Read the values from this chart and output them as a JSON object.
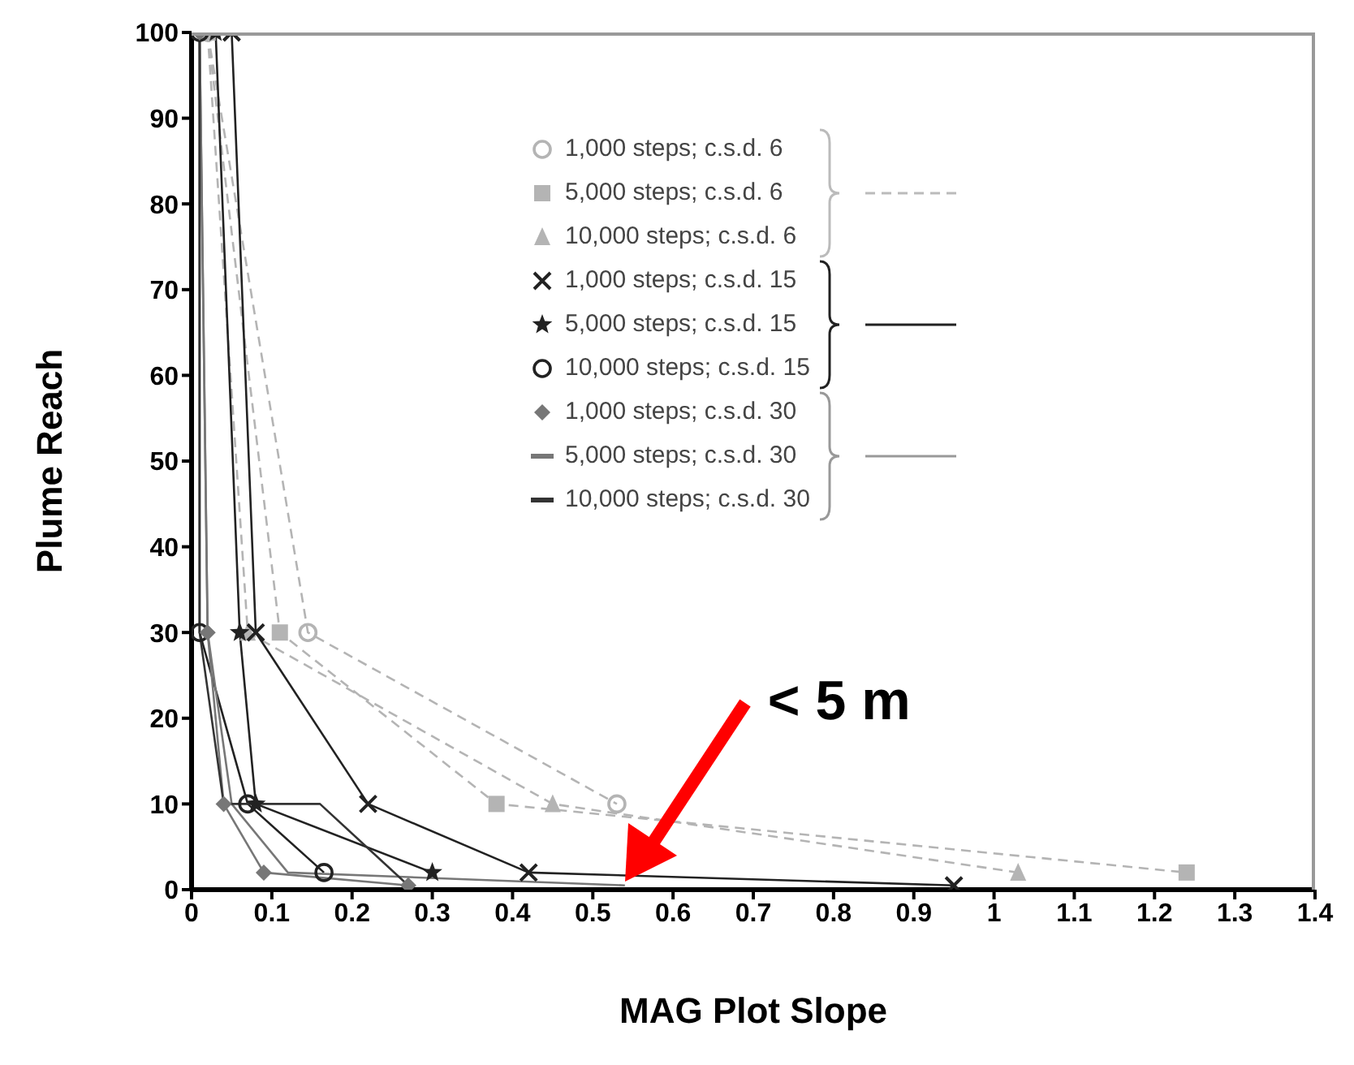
{
  "chart_data": {
    "type": "line",
    "xlabel": "MAG Plot Slope",
    "ylabel": "Plume Reach",
    "xlim": [
      0,
      1.4
    ],
    "xticks": [
      0,
      0.1,
      0.2,
      0.3,
      0.4,
      0.5,
      0.6,
      0.7,
      0.8,
      0.9,
      1,
      1.1,
      1.2,
      1.3,
      1.4
    ],
    "ylim": [
      0,
      100
    ],
    "yticks": [
      0,
      10,
      20,
      30,
      40,
      50,
      60,
      70,
      80,
      90,
      100
    ],
    "grid": false,
    "legend": "top",
    "annotations": [
      "< 5 m"
    ],
    "series": [
      {
        "name": "1,000 steps; c.s.d. 6",
        "color": "#b4b4b4",
        "marker": "circle",
        "line_style": "dashed",
        "x": [
          0.02,
          0.145,
          0.53
        ],
        "values": [
          100,
          30,
          10
        ]
      },
      {
        "name": "5,000 steps; c.s.d. 6",
        "color": "#b4b4b4",
        "marker": "square",
        "line_style": "dashed",
        "x": [
          0.02,
          0.11,
          0.38,
          1.24
        ],
        "values": [
          100,
          30,
          10,
          2
        ]
      },
      {
        "name": "10,000 steps; c.s.d. 6",
        "color": "#b4b4b4",
        "marker": "triangle",
        "line_style": "dashed",
        "x": [
          0.02,
          0.07,
          0.45,
          1.03
        ],
        "values": [
          100,
          30,
          10,
          2
        ]
      },
      {
        "name": "1,000 steps; c.s.d. 15",
        "color": "#222222",
        "marker": "cross",
        "line_style": "solid",
        "x": [
          0.05,
          0.08,
          0.22,
          0.42,
          0.95
        ],
        "values": [
          100,
          30,
          10,
          2,
          0.5
        ]
      },
      {
        "name": "5,000 steps; c.s.d. 15",
        "color": "#222222",
        "marker": "star",
        "line_style": "solid",
        "x": [
          0.03,
          0.06,
          0.08,
          0.3
        ],
        "values": [
          100,
          30,
          10,
          2
        ]
      },
      {
        "name": "10,000 steps; c.s.d. 15",
        "color": "#222222",
        "marker": "circle",
        "line_style": "solid",
        "x": [
          0.01,
          0.01,
          0.07,
          0.165
        ],
        "values": [
          100,
          30,
          10,
          2
        ]
      },
      {
        "name": "1,000 steps; c.s.d. 30",
        "color": "#777777",
        "marker": "diamond",
        "line_style": "solid",
        "x": [
          0.01,
          0.02,
          0.04,
          0.09,
          0.27
        ],
        "values": [
          100,
          30,
          10,
          2,
          0.5
        ]
      },
      {
        "name": "5,000 steps; c.s.d. 30",
        "color": "#777777",
        "marker": "none",
        "line_style": "solid",
        "x": [
          0.01,
          0.02,
          0.05,
          0.12,
          0.54
        ],
        "values": [
          100,
          30,
          10,
          2,
          0.5
        ]
      },
      {
        "name": "10,000 steps; c.s.d. 30",
        "color": "#333333",
        "marker": "none",
        "line_style": "solid",
        "x": [
          0.01,
          0.01,
          0.04,
          0.16,
          0.27
        ],
        "values": [
          100,
          30,
          10,
          10,
          0.5
        ]
      }
    ]
  }
}
